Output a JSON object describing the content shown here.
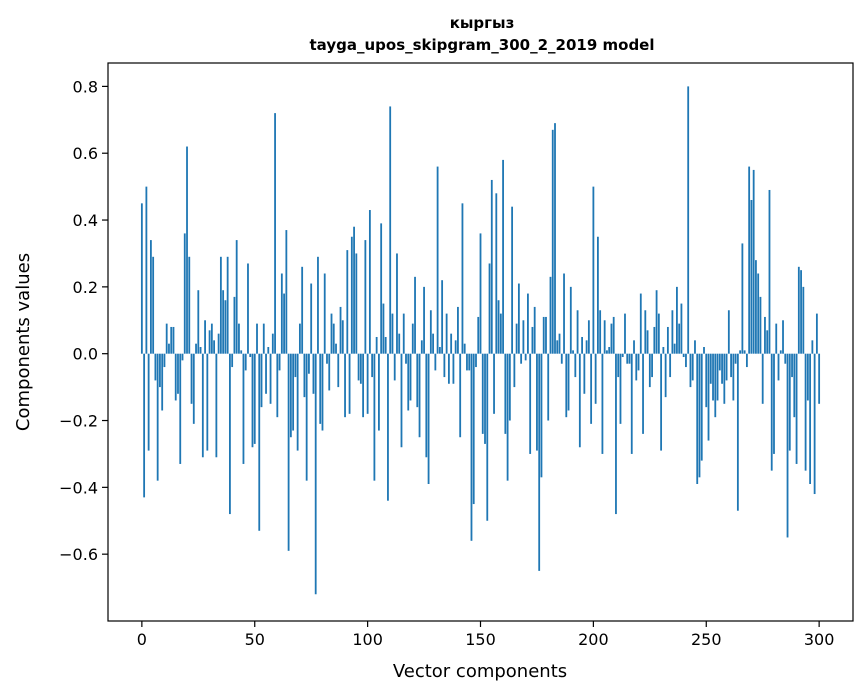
{
  "chart_data": {
    "type": "bar",
    "title": "кыргыз",
    "subtitle": "tayga_upos_skipgram_300_2_2019 model",
    "xlabel": "Vector components",
    "ylabel": "Components values",
    "xlim": [
      -15,
      315
    ],
    "ylim": [
      -0.8,
      0.87
    ],
    "xticks": [
      0,
      50,
      100,
      150,
      200,
      250,
      300
    ],
    "yticks": [
      -0.6,
      -0.4,
      -0.2,
      0.0,
      0.2,
      0.4,
      0.6,
      0.8
    ],
    "xtick_labels": [
      "0",
      "50",
      "100",
      "150",
      "200",
      "250",
      "300"
    ],
    "ytick_labels": [
      "−0.6",
      "−0.4",
      "−0.2",
      "0.0",
      "0.2",
      "0.4",
      "0.6",
      "0.8"
    ],
    "bar_color": "#1f77b4",
    "grid": false,
    "values": [
      0.45,
      -0.43,
      0.5,
      -0.29,
      0.34,
      0.29,
      -0.08,
      -0.38,
      -0.1,
      -0.17,
      -0.04,
      0.09,
      0.03,
      0.08,
      0.08,
      -0.14,
      -0.12,
      -0.33,
      -0.02,
      0.36,
      0.62,
      0.29,
      -0.15,
      -0.21,
      0.03,
      0.19,
      0.02,
      -0.31,
      0.1,
      -0.29,
      0.07,
      0.09,
      0.04,
      -0.31,
      0.06,
      0.29,
      0.19,
      0.16,
      0.29,
      -0.48,
      -0.04,
      0.17,
      0.34,
      0.09,
      0.01,
      -0.33,
      -0.05,
      0.27,
      -0.01,
      -0.28,
      -0.27,
      0.09,
      -0.53,
      -0.16,
      0.09,
      -0.12,
      0.02,
      -0.15,
      0.06,
      0.72,
      -0.19,
      -0.05,
      0.24,
      0.18,
      0.37,
      -0.59,
      -0.25,
      -0.23,
      -0.07,
      -0.29,
      0.09,
      0.26,
      -0.13,
      -0.38,
      -0.06,
      0.21,
      -0.12,
      -0.72,
      0.29,
      -0.21,
      -0.23,
      0.24,
      -0.03,
      -0.11,
      0.12,
      0.09,
      0.03,
      -0.1,
      0.14,
      0.1,
      -0.19,
      0.31,
      -0.18,
      0.35,
      0.38,
      0.3,
      -0.08,
      -0.09,
      -0.19,
      0.34,
      -0.18,
      0.43,
      -0.07,
      -0.38,
      0.05,
      -0.23,
      0.39,
      0.15,
      0.05,
      -0.44,
      0.74,
      0.12,
      -0.08,
      0.3,
      0.06,
      -0.28,
      0.12,
      -0.03,
      -0.17,
      -0.14,
      0.09,
      0.23,
      -0.16,
      -0.25,
      0.04,
      0.2,
      -0.31,
      -0.39,
      0.13,
      0.06,
      -0.05,
      0.56,
      0.02,
      0.22,
      -0.07,
      0.12,
      -0.09,
      0.06,
      -0.09,
      0.04,
      0.14,
      -0.25,
      0.45,
      0.03,
      -0.05,
      -0.05,
      -0.56,
      -0.45,
      -0.04,
      0.11,
      0.36,
      -0.24,
      -0.27,
      -0.5,
      0.27,
      0.52,
      -0.18,
      0.48,
      0.16,
      0.12,
      0.58,
      -0.24,
      -0.38,
      -0.2,
      0.44,
      -0.1,
      0.09,
      0.21,
      -0.03,
      0.1,
      -0.02,
      0.18,
      -0.3,
      0.08,
      0.14,
      -0.29,
      -0.65,
      -0.37,
      0.11,
      0.11,
      -0.2,
      0.23,
      0.67,
      0.69,
      0.04,
      0.06,
      -0.03,
      0.24,
      -0.19,
      -0.17,
      0.2,
      0.01,
      -0.07,
      0.13,
      -0.28,
      0.05,
      -0.12,
      0.04,
      0.1,
      -0.21,
      0.5,
      -0.15,
      0.35,
      0.13,
      -0.3,
      0.1,
      0.01,
      0.02,
      0.09,
      0.11,
      -0.48,
      -0.07,
      -0.21,
      -0.01,
      0.12,
      -0.03,
      -0.03,
      -0.3,
      0.04,
      -0.08,
      -0.05,
      0.18,
      -0.24,
      0.13,
      0.07,
      -0.1,
      -0.07,
      0.08,
      0.19,
      0.12,
      -0.29,
      0.02,
      -0.13,
      0.08,
      -0.07,
      0.13,
      0.03,
      0.2,
      0.09,
      0.15,
      -0.01,
      -0.04,
      0.8,
      -0.1,
      -0.08,
      0.04,
      -0.39,
      -0.37,
      -0.32,
      0.02,
      -0.16,
      -0.26,
      -0.09,
      -0.14,
      -0.19,
      -0.14,
      -0.05,
      -0.09,
      -0.15,
      -0.08,
      0.13,
      -0.07,
      -0.14,
      -0.03,
      -0.47,
      0.01,
      0.33,
      0.01,
      -0.04,
      0.56,
      0.46,
      0.55,
      0.28,
      0.24,
      0.17,
      -0.15,
      0.11,
      0.07,
      0.49,
      -0.35,
      -0.3,
      0.09,
      -0.08,
      0.01,
      0.1,
      -0.03,
      -0.55,
      -0.29,
      -0.07,
      -0.19,
      -0.33,
      0.26,
      0.25,
      0.2,
      -0.35,
      -0.14,
      -0.39,
      0.04,
      -0.42,
      0.12,
      -0.15
    ]
  }
}
